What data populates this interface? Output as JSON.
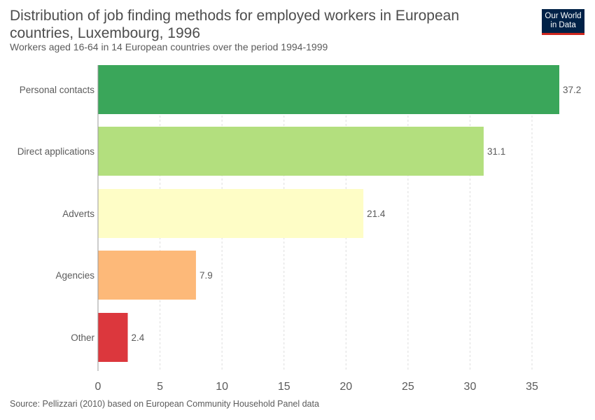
{
  "header": {
    "title": "Distribution of job finding methods for employed workers in European countries, Luxembourg, 1996",
    "subtitle": "Workers aged 16-64 in 14 European countries over the period 1994-1999"
  },
  "logo": {
    "line1": "Our World",
    "line2": "in Data"
  },
  "footer": {
    "source": "Source: Pellizzari (2010) based on European Community Household Panel data"
  },
  "chart_data": {
    "type": "bar",
    "orientation": "horizontal",
    "categories": [
      "Personal contacts",
      "Direct applications",
      "Adverts",
      "Agencies",
      "Other"
    ],
    "values": [
      37.2,
      31.1,
      21.4,
      7.9,
      2.4
    ],
    "value_labels": [
      "37.2",
      "31.1",
      "21.4",
      "7.9",
      "2.4"
    ],
    "colors": [
      "#3aa65a",
      "#b3df7e",
      "#fefdc6",
      "#fdb979",
      "#dc373d"
    ],
    "xlim": [
      0,
      37.2
    ],
    "xticks": [
      0,
      5,
      10,
      15,
      20,
      25,
      30,
      35
    ],
    "grid": true,
    "xlabel": "",
    "ylabel": ""
  }
}
